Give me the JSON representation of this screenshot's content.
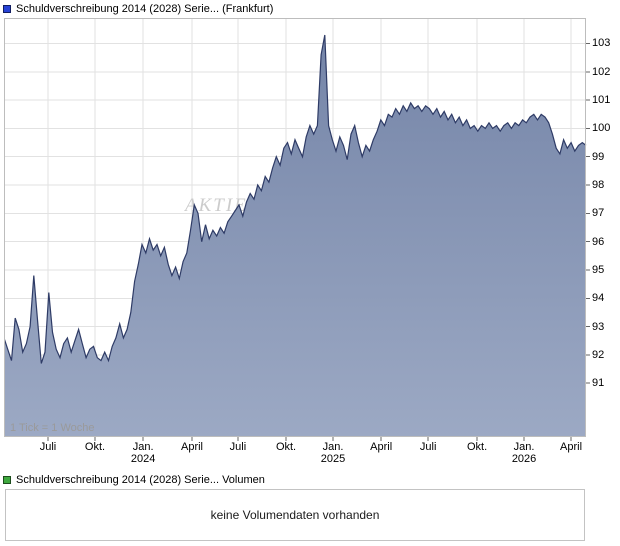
{
  "header": {
    "series_label": "Schuldverschreibung 2014 (2028) Serie... (Frankfurt)",
    "marker_color": "#2742d6"
  },
  "volume_legend": {
    "label": "Schuldverschreibung 2014 (2028) Serie... Volumen",
    "marker_color": "#3ea83e"
  },
  "volume_panel": {
    "message": "keine Volumendaten vorhanden"
  },
  "chart": {
    "watermark": "AKTIEN",
    "colors": {
      "line": "#2e3b66",
      "fill_top": "#7585a8",
      "fill_bottom": "#9ca9c4",
      "grid": "#e2e2e2",
      "border": "#bdbdbd",
      "tick": "#666666",
      "watermark_text": "#cccccc"
    }
  },
  "chart_data": {
    "type": "area",
    "title": "Schuldverschreibung 2014 (2028) Serie... (Frankfurt)",
    "tick_note": "1 Tick = 1 Woche",
    "ylim": [
      89.1,
      103.9
    ],
    "y_ticks": [
      91,
      92,
      93,
      94,
      95,
      96,
      97,
      98,
      99,
      100,
      101,
      102,
      103
    ],
    "x_ticks": [
      {
        "label": "Juli",
        "sublabel": "",
        "week": 11.8
      },
      {
        "label": "Okt.",
        "sublabel": "",
        "week": 24.4
      },
      {
        "label": "Jan.",
        "sublabel": "2024",
        "week": 37.3
      },
      {
        "label": "April",
        "sublabel": "",
        "week": 50.4
      },
      {
        "label": "Juli",
        "sublabel": "",
        "week": 62.7
      },
      {
        "label": "Okt.",
        "sublabel": "",
        "week": 75.6
      },
      {
        "label": "Jan.",
        "sublabel": "2025",
        "week": 88.2
      },
      {
        "label": "April",
        "sublabel": "",
        "week": 101.1
      },
      {
        "label": "Juli",
        "sublabel": "",
        "week": 113.7
      },
      {
        "label": "Okt.",
        "sublabel": "",
        "week": 126.8
      },
      {
        "label": "Jan.",
        "sublabel": "2026",
        "week": 139.4
      },
      {
        "label": "April",
        "sublabel": "",
        "week": 152
      }
    ],
    "series": [
      {
        "name": "Schuldverschreibung 2014 (2028) Serie...",
        "interval": "weekly",
        "values": [
          92.6,
          92.2,
          91.8,
          93.3,
          92.9,
          92.1,
          92.4,
          93.0,
          94.8,
          93.2,
          91.7,
          92.1,
          94.2,
          92.8,
          92.2,
          91.9,
          92.4,
          92.6,
          92.1,
          92.5,
          92.9,
          92.4,
          91.9,
          92.2,
          92.3,
          91.9,
          91.8,
          92.1,
          91.8,
          92.3,
          92.6,
          93.1,
          92.6,
          92.9,
          93.5,
          94.6,
          95.2,
          95.9,
          95.6,
          96.1,
          95.7,
          95.9,
          95.5,
          95.8,
          95.2,
          94.8,
          95.1,
          94.7,
          95.3,
          95.6,
          96.4,
          97.3,
          97.0,
          96.0,
          96.6,
          96.1,
          96.4,
          96.2,
          96.5,
          96.3,
          96.7,
          96.9,
          97.1,
          97.3,
          96.9,
          97.4,
          97.7,
          97.5,
          98.0,
          97.8,
          98.3,
          98.1,
          98.6,
          99.0,
          98.7,
          99.3,
          99.5,
          99.1,
          99.6,
          99.3,
          99.0,
          99.7,
          100.1,
          99.8,
          100.1,
          102.6,
          103.3,
          100.1,
          99.6,
          99.2,
          99.7,
          99.4,
          98.9,
          99.8,
          100.1,
          99.5,
          99.0,
          99.4,
          99.2,
          99.6,
          99.9,
          100.3,
          100.1,
          100.5,
          100.4,
          100.7,
          100.5,
          100.8,
          100.6,
          100.9,
          100.7,
          100.8,
          100.6,
          100.8,
          100.7,
          100.5,
          100.7,
          100.4,
          100.6,
          100.3,
          100.5,
          100.2,
          100.4,
          100.1,
          100.3,
          100.0,
          100.1,
          99.9,
          100.1,
          100.0,
          100.2,
          100.0,
          100.1,
          99.9,
          100.1,
          100.2,
          100.0,
          100.2,
          100.1,
          100.3,
          100.2,
          100.4,
          100.5,
          100.3,
          100.5,
          100.4,
          100.2,
          99.8,
          99.3,
          99.1,
          99.6,
          99.3,
          99.5,
          99.2,
          99.4,
          99.5,
          99.4
        ]
      }
    ]
  }
}
